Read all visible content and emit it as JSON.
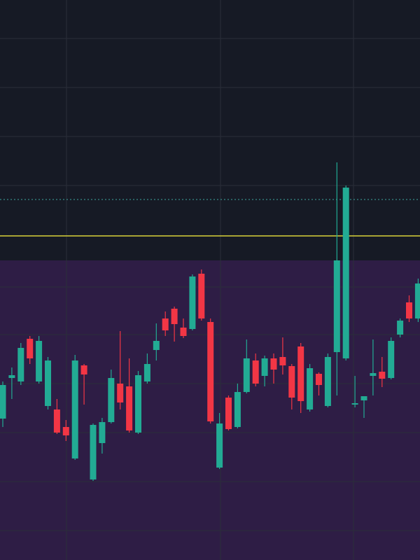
{
  "chart_data": {
    "type": "candlestick",
    "ylim": [
      0,
      800
    ],
    "up_color": "#22ab94",
    "down_color": "#f23645",
    "open": [
      202,
      260,
      255,
      316,
      255,
      220,
      215,
      190,
      145,
      278,
      115,
      167,
      197,
      252,
      248,
      182,
      255,
      300,
      345,
      359,
      332,
      330,
      409,
      340,
      132,
      232,
      190,
      240,
      285,
      263,
      288,
      290,
      277,
      305,
      215,
      266,
      220,
      297,
      288,
      222,
      228,
      263,
      269,
      260,
      322,
      368,
      345
    ],
    "high": [
      255,
      275,
      310,
      320,
      320,
      290,
      230,
      200,
      293,
      280,
      195,
      203,
      272,
      327,
      288,
      270,
      295,
      338,
      355,
      362,
      345,
      408,
      415,
      345,
      210,
      235,
      252,
      315,
      295,
      292,
      295,
      318,
      280,
      310,
      280,
      268,
      295,
      568,
      535,
      263,
      234,
      315,
      290,
      318,
      345,
      378,
      402
    ],
    "low": [
      190,
      230,
      250,
      280,
      252,
      215,
      180,
      170,
      143,
      222,
      113,
      152,
      195,
      215,
      182,
      180,
      252,
      285,
      320,
      312,
      317,
      328,
      342,
      195,
      130,
      185,
      188,
      238,
      248,
      248,
      252,
      265,
      215,
      210,
      212,
      235,
      218,
      235,
      285,
      218,
      203,
      235,
      247,
      258,
      318,
      340,
      340
    ],
    "close": [
      250,
      264,
      303,
      288,
      313,
      285,
      182,
      178,
      285,
      265,
      193,
      197,
      260,
      225,
      185,
      264,
      280,
      313,
      328,
      337,
      320,
      405,
      345,
      198,
      195,
      187,
      240,
      288,
      252,
      288,
      272,
      278,
      232,
      227,
      274,
      250,
      290,
      428,
      532,
      224,
      234,
      267,
      259,
      313,
      342,
      345,
      395
    ],
    "levels": [
      {
        "value": 515,
        "color": "#3fa7a0",
        "dashed": true
      },
      {
        "value": 463,
        "color": "#d8d23a",
        "dashed": false
      }
    ],
    "zone": {
      "top": 428,
      "color": "#2e1d45"
    }
  }
}
